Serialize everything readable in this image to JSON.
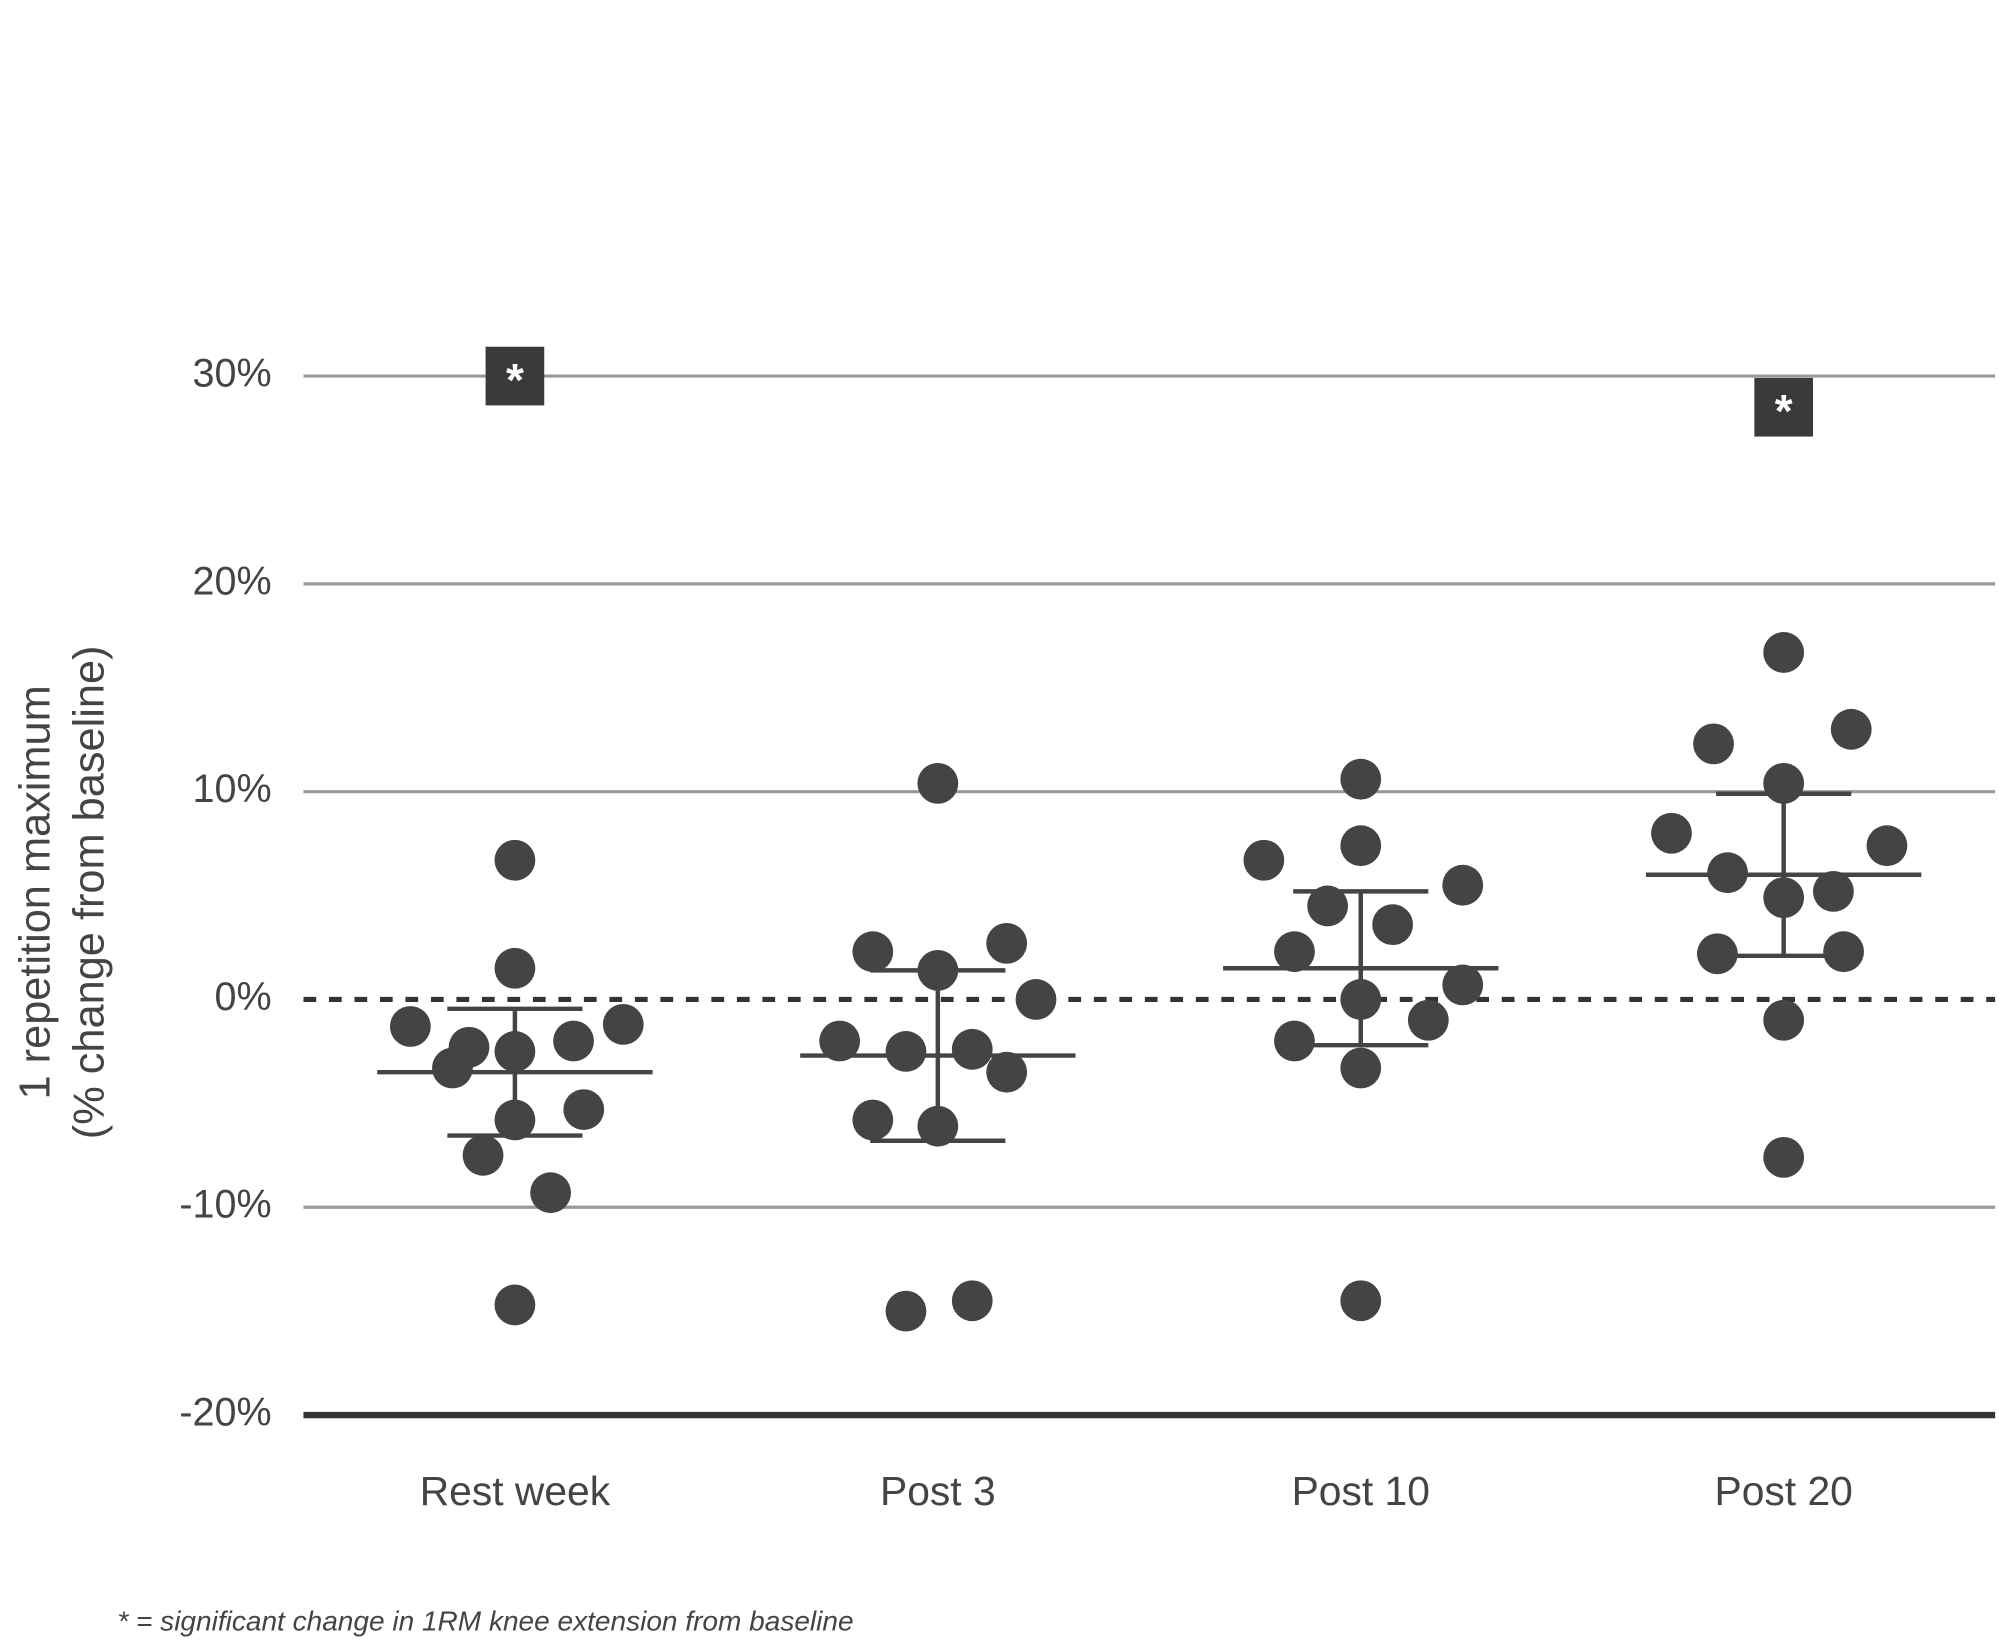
{
  "chart_data": {
    "type": "dot",
    "y_label": [
      "1 repetition maximum",
      "(% change from baseline)"
    ],
    "categories": [
      "Rest week",
      "Post 3",
      "Post 10",
      "Post 20"
    ],
    "groups": [
      {
        "values": [
          6.7,
          1.5,
          -1.3,
          -2.3,
          -3.3,
          -2.5,
          -2.0,
          -1.2,
          -5.8,
          -5.3,
          -7.5,
          -9.3,
          -14.7
        ],
        "mean": -3.5,
        "sd": 3.05
      },
      {
        "values": [
          10.4,
          2.3,
          1.4,
          2.7,
          0,
          -2.0,
          -2.5,
          -2.4,
          -3.5,
          -5.8,
          -6.1,
          -15.0,
          -14.5
        ],
        "mean": -2.7,
        "sd": 4.1
      },
      {
        "values": [
          10.6,
          6.7,
          7.4,
          4.5,
          5.5,
          3.6,
          2.3,
          0.7,
          0,
          -1.0,
          -2.0,
          -3.3,
          -14.5
        ],
        "mean": 1.5,
        "sd": 3.7
      },
      {
        "values": [
          16.7,
          12.3,
          13.0,
          10.4,
          8.0,
          7.4,
          6.1,
          4.9,
          5.2,
          2.2,
          2.3,
          -1.0,
          -7.6
        ],
        "mean": 6.0,
        "sd": 3.9
      }
    ],
    "annotations": [
      {
        "category": 0,
        "y": 30,
        "text": "*"
      },
      {
        "category": 3,
        "y": 28.5,
        "text": "*"
      }
    ],
    "reference_line": 0,
    "color": "#444444",
    "ylim": [
      -20,
      30
    ],
    "yticks": [
      {
        "value": -20,
        "label": "-20%"
      },
      {
        "value": -10,
        "label": "-10%"
      },
      {
        "value": 0,
        "label": "0%"
      },
      {
        "value": 10,
        "label": "10%"
      },
      {
        "value": 20,
        "label": "20%"
      },
      {
        "value": 30,
        "label": "30%"
      }
    ],
    "grid": true,
    "footnote": "* = significant change in 1RM knee extension from baseline"
  }
}
